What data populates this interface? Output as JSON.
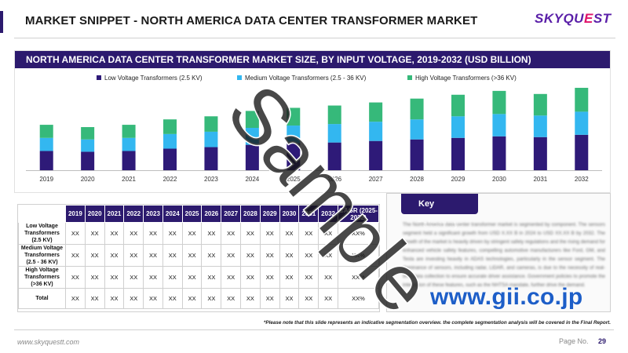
{
  "header": {
    "title": "MARKET SNIPPET - NORTH AMERICA DATA CENTER TRANSFORMER MARKET",
    "logo_main": "SKYQU",
    "logo_accent": "E",
    "logo_end": "ST"
  },
  "chart_data": {
    "type": "bar",
    "stacked": true,
    "title": "NORTH AMERICA DATA CENTER TRANSFORMER MARKET SIZE, BY INPUT VOLTAGE, 2019-2032 (USD BILLION)",
    "categories": [
      "2019",
      "2020",
      "2021",
      "2022",
      "2023",
      "2024",
      "2025",
      "2026",
      "2027",
      "2028",
      "2029",
      "2030",
      "2031",
      "2032"
    ],
    "series": [
      {
        "name": "Low Voltage Transformers (2.5 KV)",
        "color": "#2e1a78",
        "values": [
          2.5,
          2.4,
          2.5,
          2.8,
          3.0,
          3.3,
          3.5,
          3.6,
          3.8,
          4.0,
          4.2,
          4.4,
          4.3,
          4.6
        ]
      },
      {
        "name": "Medium Voltage Transformers (2.5 - 36 KV)",
        "color": "#33b7f0",
        "values": [
          1.7,
          1.6,
          1.7,
          1.9,
          2.0,
          2.2,
          2.3,
          2.4,
          2.5,
          2.6,
          2.8,
          2.9,
          2.8,
          3.0
        ]
      },
      {
        "name": "High Voltage Transformers (>36 KV)",
        "color": "#36b97a",
        "values": [
          1.7,
          1.6,
          1.7,
          1.9,
          2.0,
          2.2,
          2.3,
          2.4,
          2.5,
          2.7,
          2.8,
          3.0,
          2.8,
          3.1
        ]
      }
    ],
    "ylim": [
      0,
      11
    ],
    "grid": false,
    "legend": "top"
  },
  "table": {
    "headers": [
      "2019",
      "2020",
      "2021",
      "2022",
      "2023",
      "2024",
      "2025",
      "2026",
      "2027",
      "2028",
      "2029",
      "2030",
      "2031",
      "2032",
      "CAGR (2025-2032)"
    ],
    "rows": [
      {
        "label": "Low Voltage Transformers (2.5 KV)",
        "cells": [
          "XX",
          "XX",
          "XX",
          "XX",
          "XX",
          "XX",
          "XX",
          "XX",
          "XX",
          "XX",
          "XX",
          "XX",
          "XX",
          "XX",
          "XX%"
        ]
      },
      {
        "label": "Medium Voltage Transformers (2.5 - 36 KV)",
        "cells": [
          "XX",
          "XX",
          "XX",
          "XX",
          "XX",
          "XX",
          "XX",
          "XX",
          "XX",
          "XX",
          "XX",
          "XX",
          "XX",
          "XX",
          "XX%"
        ]
      },
      {
        "label": "High Voltage Transformers (>36 KV)",
        "cells": [
          "XX",
          "XX",
          "XX",
          "XX",
          "XX",
          "XX",
          "XX",
          "XX",
          "XX",
          "XX",
          "XX",
          "XX",
          "XX",
          "XX",
          "XX%"
        ]
      },
      {
        "label": "Total",
        "cells": [
          "XX",
          "XX",
          "XX",
          "XX",
          "XX",
          "XX",
          "XX",
          "XX",
          "XX",
          "XX",
          "XX",
          "XX",
          "XX",
          "XX",
          "XX%"
        ]
      }
    ]
  },
  "takeaways": {
    "tab_label": "Key Takeaways",
    "body": "The North America data center transformer market is segmented by component. The sensors segment held a significant growth from USD X.XX B in 2024 to USD XX.XX B by 2032. The growth of the market is heavily driven by stringent safety regulations and the rising demand for enhanced vehicle safety features, compelling automotive manufacturers like Ford, GM, and Tesla are investing heavily in ADAS technologies, particularly in the sensor segment. The dominance of sensors, including radar, LiDAR, and cameras, is due to the necessity of real-time data collection to ensure accurate driver assistance. Government policies to promote the integration of these features, such as the NHTSA mandate, further drive the demand."
  },
  "footer": {
    "note": "*Please note that this slide represents an indicative segmentation overview. the complete segmentation analysis will be covered in the Final Report.",
    "url": "www.skyquestt.com",
    "page_label": "Page No.",
    "page_number": "29"
  },
  "overlays": {
    "watermark": "Sample",
    "gii": "www.gii.co.jp"
  }
}
